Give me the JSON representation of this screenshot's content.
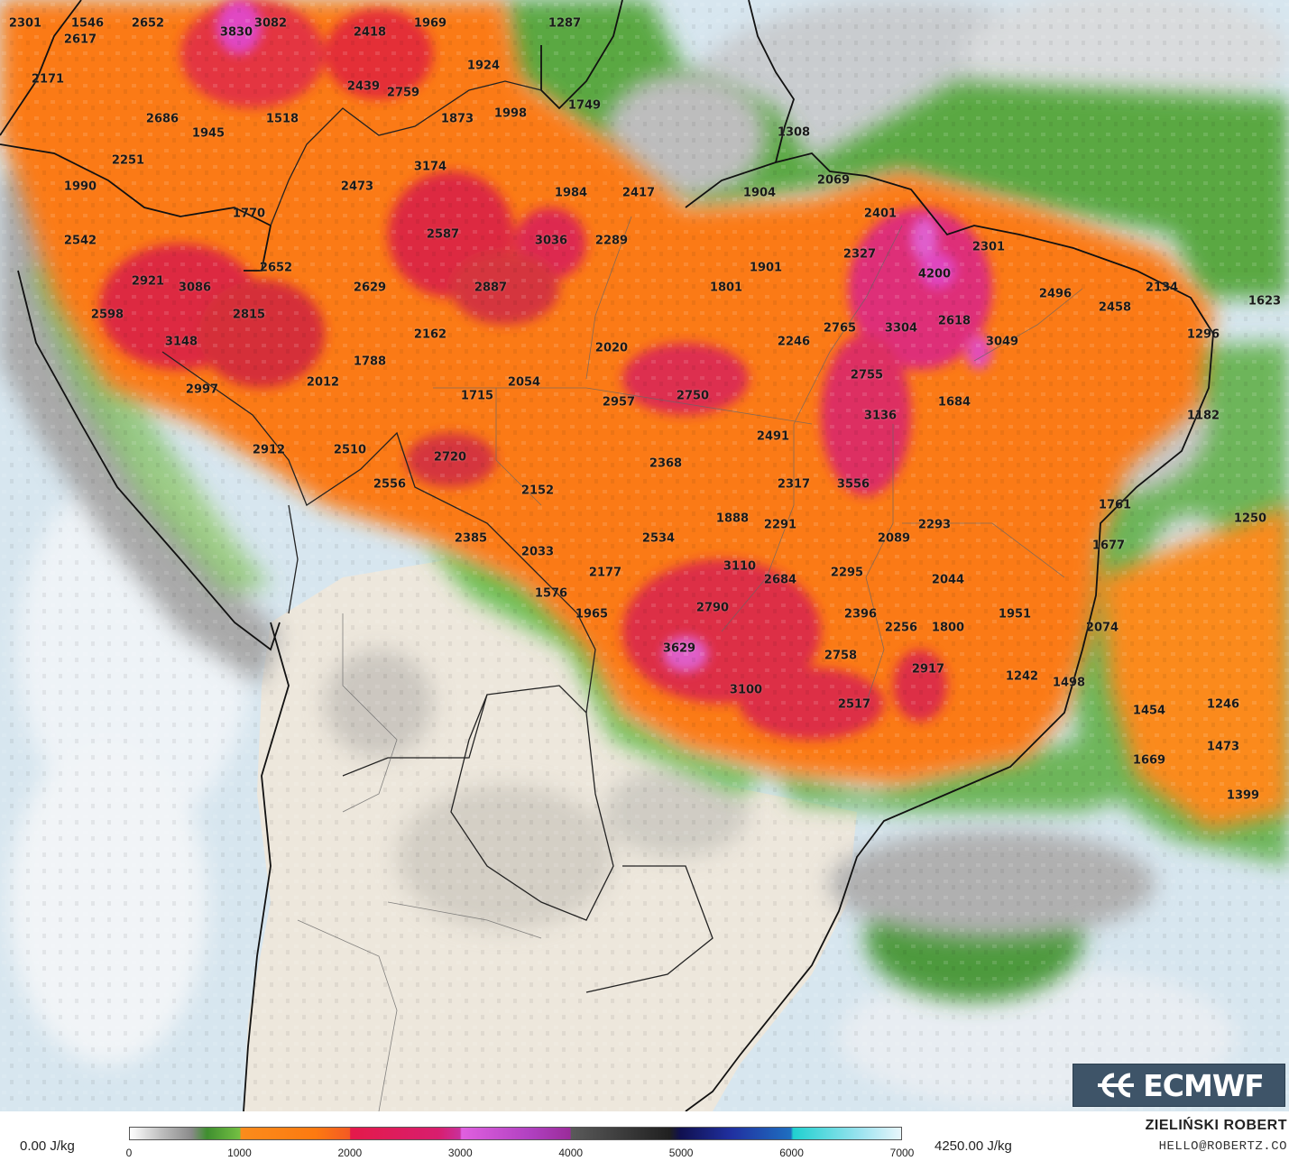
{
  "map": {
    "variable_unit": "J/kg",
    "values": [
      {
        "t": "2301"
      },
      {
        "t": "1546"
      },
      {
        "t": "2652"
      },
      {
        "t": "3082"
      },
      {
        "t": "1969"
      },
      {
        "t": "1287"
      },
      {
        "t": "2617"
      },
      {
        "t": "3830"
      },
      {
        "t": "2418"
      },
      {
        "t": "1924"
      },
      {
        "t": "2171"
      },
      {
        "t": "2439"
      },
      {
        "t": "2759"
      },
      {
        "t": "1749"
      },
      {
        "t": "2686"
      },
      {
        "t": "1518"
      },
      {
        "t": "1873"
      },
      {
        "t": "1998"
      },
      {
        "t": "1945"
      },
      {
        "t": "1308"
      },
      {
        "t": "2251"
      },
      {
        "t": "3174"
      },
      {
        "t": "2069"
      },
      {
        "t": "1990"
      },
      {
        "t": "2473"
      },
      {
        "t": "1984"
      },
      {
        "t": "2417"
      },
      {
        "t": "1904"
      },
      {
        "t": "1770"
      },
      {
        "t": "2401"
      },
      {
        "t": "2542"
      },
      {
        "t": "2587"
      },
      {
        "t": "3036"
      },
      {
        "t": "2289"
      },
      {
        "t": "2327"
      },
      {
        "t": "2301"
      },
      {
        "t": "2652"
      },
      {
        "t": "1901"
      },
      {
        "t": "4200"
      },
      {
        "t": "2921"
      },
      {
        "t": "3086"
      },
      {
        "t": "2629"
      },
      {
        "t": "2887"
      },
      {
        "t": "1801"
      },
      {
        "t": "2496"
      },
      {
        "t": "2134"
      },
      {
        "t": "1623"
      },
      {
        "t": "2598"
      },
      {
        "t": "2815"
      },
      {
        "t": "2458"
      },
      {
        "t": "2765"
      },
      {
        "t": "3304"
      },
      {
        "t": "2618"
      },
      {
        "t": "3148"
      },
      {
        "t": "2162"
      },
      {
        "t": "2246"
      },
      {
        "t": "1296"
      },
      {
        "t": "3049"
      },
      {
        "t": "1788"
      },
      {
        "t": "2020"
      },
      {
        "t": "2012"
      },
      {
        "t": "2054"
      },
      {
        "t": "2755"
      },
      {
        "t": "2997"
      },
      {
        "t": "1715"
      },
      {
        "t": "2750"
      },
      {
        "t": "1684"
      },
      {
        "t": "2957"
      },
      {
        "t": "3136"
      },
      {
        "t": "1182"
      },
      {
        "t": "2491"
      },
      {
        "t": "2912"
      },
      {
        "t": "2510"
      },
      {
        "t": "2720"
      },
      {
        "t": "2368"
      },
      {
        "t": "2317"
      },
      {
        "t": "3556"
      },
      {
        "t": "2556"
      },
      {
        "t": "2152"
      },
      {
        "t": "1761"
      },
      {
        "t": "1250"
      },
      {
        "t": "1888"
      },
      {
        "t": "2291"
      },
      {
        "t": "2293"
      },
      {
        "t": "2385"
      },
      {
        "t": "2534"
      },
      {
        "t": "2089"
      },
      {
        "t": "1677"
      },
      {
        "t": "2033"
      },
      {
        "t": "3110"
      },
      {
        "t": "2177"
      },
      {
        "t": "2684"
      },
      {
        "t": "2295"
      },
      {
        "t": "2044"
      },
      {
        "t": "1576"
      },
      {
        "t": "2790"
      },
      {
        "t": "1965"
      },
      {
        "t": "2396"
      },
      {
        "t": "1951"
      },
      {
        "t": "2256"
      },
      {
        "t": "1800"
      },
      {
        "t": "2074"
      },
      {
        "t": "3629"
      },
      {
        "t": "2758"
      },
      {
        "t": "2917"
      },
      {
        "t": "1242"
      },
      {
        "t": "1498"
      },
      {
        "t": "3100"
      },
      {
        "t": "2517"
      },
      {
        "t": "1454"
      },
      {
        "t": "1246"
      },
      {
        "t": "1473"
      },
      {
        "t": "1669"
      },
      {
        "t": "1399"
      }
    ]
  },
  "logo": {
    "text": "ECMWF"
  },
  "legend": {
    "min_label": "0.00 J/kg",
    "max_label": "4250.00 J/kg",
    "ticks": [
      "0",
      "1000",
      "2000",
      "3000",
      "4000",
      "5000",
      "6000",
      "7000"
    ],
    "range": [
      0,
      7000
    ]
  },
  "credits": {
    "author": "ZIELIŃSKI ROBERT",
    "email": "HELLO@ROBERTZ.CO"
  }
}
